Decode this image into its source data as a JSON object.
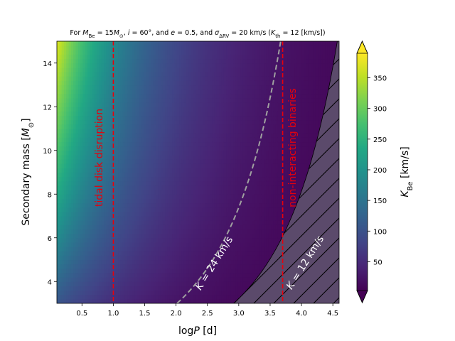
{
  "chart_data": {
    "type": "heatmap",
    "title_parts": [
      "For ",
      "M",
      "Be",
      " = 15",
      "M",
      "⊙",
      ", ",
      "i",
      " = 60°, and ",
      "e",
      " = 0.5, and ",
      "σ",
      "ΔRV",
      " = 20 km/s (",
      "K",
      "th",
      " = 12 [km/s])"
    ],
    "xlabel": [
      "log",
      "P",
      " [d]"
    ],
    "ylabel": [
      "Secondary mass [",
      "M",
      "⊙",
      "]"
    ],
    "colorbar_label": [
      "K",
      "Be",
      " [km/s]"
    ],
    "xlim": [
      0.1,
      4.6
    ],
    "ylim": [
      3.0,
      15.0
    ],
    "clim": [
      3,
      390
    ],
    "colormap": "viridis",
    "colorbar_extend": "both",
    "xticks": [
      0.5,
      1.0,
      1.5,
      2.0,
      2.5,
      3.0,
      3.5,
      4.0,
      4.5
    ],
    "xtick_labels": [
      "0.5",
      "1.0",
      "1.5",
      "2.0",
      "2.5",
      "3.0",
      "3.5",
      "4.0",
      "4.5"
    ],
    "yticks": [
      4,
      6,
      8,
      10,
      12,
      14
    ],
    "ytick_labels": [
      "4",
      "6",
      "8",
      "10",
      "12",
      "14"
    ],
    "cbar_ticks": [
      50,
      100,
      150,
      200,
      250,
      300,
      350
    ],
    "cbar_tick_labels": [
      "50",
      "100",
      "150",
      "200",
      "250",
      "300",
      "350"
    ],
    "vlines": [
      {
        "x": 1.0,
        "label": "tidal disk disruption",
        "color": "#e8000b",
        "style": "dashed"
      },
      {
        "x": 3.7,
        "label": "non-interacting binaries",
        "color": "#e8000b",
        "style": "dashed"
      }
    ],
    "contours": [
      {
        "K": 24,
        "label": "K = 24 km/s",
        "color": "#a0a0a0",
        "style": "dashed"
      },
      {
        "K": 12,
        "label": "K = 12 km/s",
        "color": "#ffffff",
        "style": "hatched region"
      }
    ]
  }
}
